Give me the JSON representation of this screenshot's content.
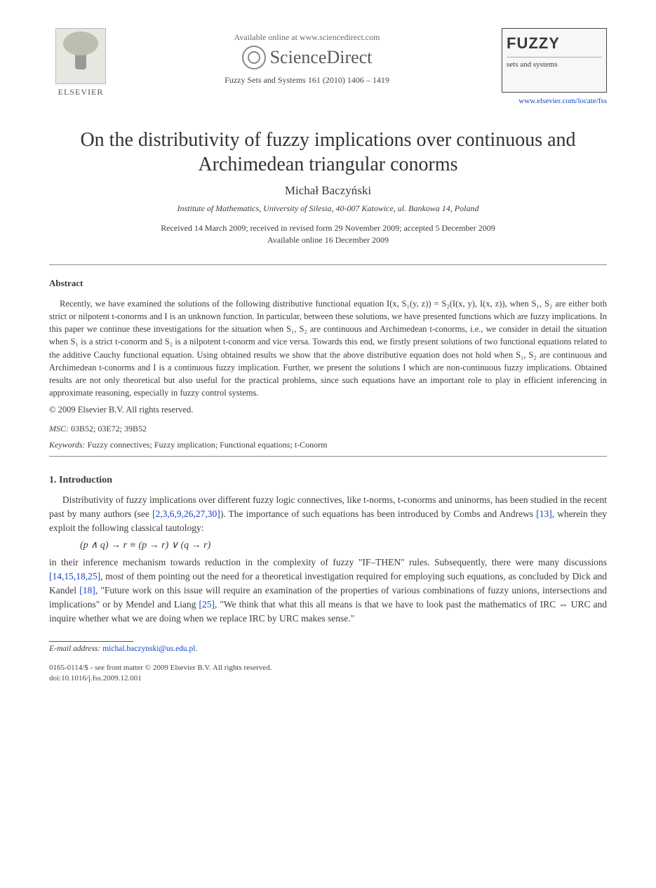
{
  "header": {
    "publisher": "ELSEVIER",
    "available_line": "Available online at www.sciencedirect.com",
    "sd_brand": "ScienceDirect",
    "journal_ref": "Fuzzy Sets and Systems  161 (2010) 1406 – 1419",
    "journal_logo_main": "FUZZY",
    "journal_logo_sub": "sets and systems",
    "journal_url": "www.elsevier.com/locate/fss"
  },
  "title": "On the distributivity of fuzzy implications over continuous and Archimedean triangular conorms",
  "author": "Michał Baczyński",
  "affiliation": "Institute of Mathematics, University of Silesia, 40-007 Katowice, ul. Bankowa 14, Poland",
  "dates_line1": "Received 14 March 2009; received in revised form 29 November 2009; accepted 5 December 2009",
  "dates_line2": "Available online 16 December 2009",
  "abstract_label": "Abstract",
  "abstract_text": "Recently, we have examined the solutions of the following distributive functional equation I(x, S₁(y, z)) = S₂(I(x, y), I(x, z)), when S₁, S₂ are either both strict or nilpotent t-conorms and I is an unknown function. In particular, between these solutions, we have presented functions which are fuzzy implications. In this paper we continue these investigations for the situation when S₁, S₂ are continuous and Archimedean t-conorms, i.e., we consider in detail the situation when S₁ is a strict t-conorm and S₂ is a nilpotent t-conorm and vice versa. Towards this end, we firstly present solutions of two functional equations related to the additive Cauchy functional equation. Using obtained results we show that the above distributive equation does not hold when S₁, S₂ are continuous and Archimedean t-conorms and I is a continuous fuzzy implication. Further, we present the solutions I which are non-continuous fuzzy implications. Obtained results are not only theoretical but also useful for the practical problems, since such equations have an important role to play in efficient inferencing in approximate reasoning, especially in fuzzy control systems.",
  "copyright": "© 2009 Elsevier B.V. All rights reserved.",
  "msc_label": "MSC:",
  "msc_codes": "03B52; 03E72; 39B52",
  "keywords_label": "Keywords:",
  "keywords_text": "Fuzzy connectives; Fuzzy implication; Functional equations; t-Conorm",
  "section1_head": "1. Introduction",
  "intro_p1_a": "Distributivity of fuzzy implications over different fuzzy logic connectives, like t-norms, t-conorms and uninorms, has been studied in the recent past by many authors (see ",
  "ref_list1": "[2,3,6,9,26,27,30]",
  "intro_p1_b": "). The importance of such equations has been introduced by Combs and Andrews ",
  "ref13": "[13]",
  "intro_p1_c": ", wherein they exploit the following classical tautology:",
  "formula": "(p ∧ q) → r ≡ (p → r) ∨ (q → r)",
  "intro_p2_a": "in their inference mechanism towards reduction in the complexity of fuzzy \"IF–THEN\" rules. Subsequently, there were many discussions ",
  "ref_list2": "[14,15,18,25]",
  "intro_p2_b": ", most of them pointing out the need for a theoretical investigation required for employing such equations, as concluded by Dick and Kandel ",
  "ref18": "[18]",
  "intro_p2_c": ", \"Future work on this issue will require an examination of the properties of various combinations of fuzzy unions, intersections and implications\" or by Mendel and Liang ",
  "ref25": "[25]",
  "intro_p2_d": ", \"We think that what this all means is that we have to look past the mathematics of IRC ⇔ URC and inquire whether what we are doing when we replace IRC by URC makes sense.\"",
  "footnote_label": "E-mail address:",
  "footnote_email": "michal.baczynski@us.edu.pl",
  "footnote_tail": ".",
  "bottom1": "0165-0114/$ - see front matter © 2009 Elsevier B.V. All rights reserved.",
  "bottom2": "doi:10.1016/j.fss.2009.12.001",
  "colors": {
    "link": "#1546c8",
    "text": "#3a3a3a",
    "rule": "#888888",
    "background": "#ffffff"
  }
}
